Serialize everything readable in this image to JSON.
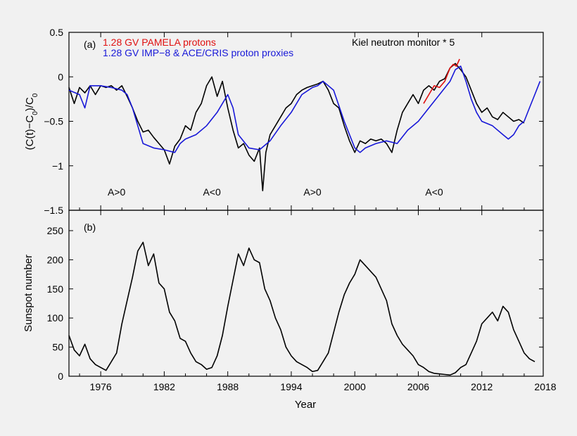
{
  "chart_data": [
    {
      "type": "line",
      "panel_label": "(a)",
      "ylabel": "(C(t)−C0)/C0",
      "ylim": [
        -1.5,
        0.5
      ],
      "yticks": [
        0.5,
        0,
        -0.5,
        -1,
        -1.5
      ],
      "ytick_labels": [
        "0.5",
        "0",
        "−0.5",
        "−1",
        "−1.5"
      ],
      "xlim": [
        1973.0,
        2017.8
      ],
      "series": [
        {
          "name": "Kiel neutron monitor * 5",
          "color": "#000000",
          "x": [
            1973.0,
            1973.5,
            1974.0,
            1974.5,
            1975.0,
            1975.5,
            1976.0,
            1976.5,
            1977.0,
            1977.5,
            1978.0,
            1978.5,
            1979.0,
            1979.5,
            1980.0,
            1980.5,
            1981.0,
            1981.5,
            1982.0,
            1982.5,
            1983.0,
            1983.5,
            1984.0,
            1984.5,
            1985.0,
            1985.5,
            1986.0,
            1986.5,
            1987.0,
            1987.5,
            1988.0,
            1988.5,
            1989.0,
            1989.5,
            1990.0,
            1990.5,
            1991.0,
            1991.3,
            1991.6,
            1992.0,
            1992.5,
            1993.0,
            1993.5,
            1994.0,
            1994.5,
            1995.0,
            1995.5,
            1996.0,
            1996.5,
            1997.0,
            1997.5,
            1998.0,
            1998.5,
            1999.0,
            1999.5,
            2000.0,
            2000.5,
            2001.0,
            2001.5,
            2002.0,
            2002.5,
            2003.0,
            2003.5,
            2004.0,
            2004.5,
            2005.0,
            2005.5,
            2006.0,
            2006.5,
            2007.0,
            2007.5,
            2008.0,
            2008.5,
            2009.0,
            2009.5,
            2010.0,
            2010.5,
            2011.0,
            2011.5,
            2012.0,
            2012.5,
            2013.0,
            2013.5,
            2014.0,
            2014.5,
            2015.0,
            2015.5,
            2016.0
          ],
          "y": [
            -0.12,
            -0.3,
            -0.12,
            -0.18,
            -0.1,
            -0.2,
            -0.1,
            -0.12,
            -0.1,
            -0.15,
            -0.1,
            -0.22,
            -0.35,
            -0.5,
            -0.62,
            -0.6,
            -0.68,
            -0.75,
            -0.82,
            -0.98,
            -0.78,
            -0.7,
            -0.55,
            -0.6,
            -0.4,
            -0.3,
            -0.1,
            0.0,
            -0.22,
            -0.05,
            -0.35,
            -0.6,
            -0.8,
            -0.75,
            -0.88,
            -0.95,
            -0.8,
            -1.28,
            -0.85,
            -0.65,
            -0.55,
            -0.45,
            -0.35,
            -0.3,
            -0.2,
            -0.15,
            -0.12,
            -0.1,
            -0.08,
            -0.05,
            -0.15,
            -0.3,
            -0.35,
            -0.55,
            -0.72,
            -0.85,
            -0.72,
            -0.75,
            -0.7,
            -0.72,
            -0.7,
            -0.75,
            -0.85,
            -0.6,
            -0.4,
            -0.3,
            -0.2,
            -0.3,
            -0.15,
            -0.1,
            -0.15,
            -0.05,
            -0.02,
            0.1,
            0.15,
            0.08,
            0.0,
            -0.15,
            -0.3,
            -0.4,
            -0.35,
            -0.45,
            -0.48,
            -0.4,
            -0.45,
            -0.5,
            -0.48,
            -0.52
          ]
        },
        {
          "name": "1.28 GV IMP−8 & ACE/CRIS proton proxies",
          "color": "#1818d8",
          "x": [
            1973.0,
            1974.0,
            1974.5,
            1975.0,
            1976.0,
            1977.0,
            1978.0,
            1978.5,
            1979.0,
            1979.5,
            1980.0,
            1981.0,
            1982.0,
            1983.0,
            1983.5,
            1984.0,
            1985.0,
            1986.0,
            1987.0,
            1987.5,
            1988.0,
            1988.5,
            1989.0,
            1990.0,
            1991.0,
            1992.0,
            1993.0,
            1994.0,
            1995.0,
            1996.0,
            1996.5,
            1997.0,
            1998.0,
            1999.0,
            2000.0,
            2000.5,
            2001.0,
            2002.0,
            2003.0,
            2004.0,
            2005.0,
            2006.0,
            2007.0,
            2008.0,
            2009.0,
            2009.5,
            2010.0,
            2010.5,
            2011.0,
            2011.5,
            2012.0,
            2013.0,
            2014.0,
            2014.5,
            2015.0,
            2015.5,
            2016.0,
            2016.5,
            2017.0,
            2017.5
          ],
          "y": [
            -0.15,
            -0.2,
            -0.35,
            -0.1,
            -0.1,
            -0.12,
            -0.15,
            -0.2,
            -0.35,
            -0.55,
            -0.75,
            -0.8,
            -0.82,
            -0.85,
            -0.75,
            -0.7,
            -0.65,
            -0.55,
            -0.4,
            -0.3,
            -0.2,
            -0.35,
            -0.65,
            -0.8,
            -0.82,
            -0.72,
            -0.55,
            -0.4,
            -0.2,
            -0.12,
            -0.1,
            -0.05,
            -0.15,
            -0.5,
            -0.8,
            -0.85,
            -0.8,
            -0.75,
            -0.72,
            -0.75,
            -0.6,
            -0.5,
            -0.35,
            -0.2,
            -0.05,
            0.08,
            0.12,
            -0.05,
            -0.25,
            -0.4,
            -0.5,
            -0.55,
            -0.65,
            -0.7,
            -0.65,
            -0.55,
            -0.5,
            -0.35,
            -0.2,
            -0.05
          ]
        },
        {
          "name": "1.28 GV PAMELA protons",
          "color": "#e01010",
          "x": [
            2006.5,
            2007.0,
            2007.5,
            2008.0,
            2008.5,
            2009.0,
            2009.3,
            2009.6,
            2009.9
          ],
          "y": [
            -0.3,
            -0.2,
            -0.1,
            -0.12,
            -0.05,
            0.1,
            0.14,
            0.12,
            0.2
          ]
        }
      ],
      "annotations": [
        "A>0",
        "A<0",
        "A>0",
        "A<0"
      ],
      "annotation_x": [
        1977.5,
        1986.5,
        1996.0,
        2007.5
      ]
    },
    {
      "type": "line",
      "panel_label": "(b)",
      "ylabel": "Sunspot number",
      "xlabel": "Year",
      "ylim": [
        0,
        285
      ],
      "yticks": [
        0,
        50,
        100,
        150,
        200,
        250
      ],
      "ytick_labels": [
        "0",
        "50",
        "100",
        "150",
        "200",
        "250"
      ],
      "xlim": [
        1973.0,
        2017.8
      ],
      "xticks": [
        1976,
        1982,
        1988,
        1994,
        2000,
        2006,
        2012,
        2018
      ],
      "xtick_labels": [
        "1976",
        "1982",
        "1988",
        "1994",
        "2000",
        "2006",
        "2012",
        "2018"
      ],
      "series": [
        {
          "color": "#000000",
          "x": [
            1973.0,
            1973.5,
            1974.0,
            1974.5,
            1975.0,
            1975.5,
            1976.0,
            1976.5,
            1977.0,
            1977.5,
            1978.0,
            1978.5,
            1979.0,
            1979.5,
            1980.0,
            1980.5,
            1981.0,
            1981.5,
            1982.0,
            1982.5,
            1983.0,
            1983.5,
            1984.0,
            1984.5,
            1985.0,
            1985.5,
            1986.0,
            1986.5,
            1987.0,
            1987.5,
            1988.0,
            1988.5,
            1989.0,
            1989.5,
            1990.0,
            1990.5,
            1991.0,
            1991.5,
            1992.0,
            1992.5,
            1993.0,
            1993.5,
            1994.0,
            1994.5,
            1995.0,
            1995.5,
            1996.0,
            1996.5,
            1997.0,
            1997.5,
            1998.0,
            1998.5,
            1999.0,
            1999.5,
            2000.0,
            2000.5,
            2001.0,
            2001.5,
            2002.0,
            2002.5,
            2003.0,
            2003.5,
            2004.0,
            2004.5,
            2005.0,
            2005.5,
            2006.0,
            2006.5,
            2007.0,
            2007.5,
            2008.0,
            2008.5,
            2009.0,
            2009.5,
            2010.0,
            2010.5,
            2011.0,
            2011.5,
            2012.0,
            2012.5,
            2013.0,
            2013.5,
            2014.0,
            2014.5,
            2015.0,
            2015.5,
            2016.0,
            2016.5,
            2017.0
          ],
          "y": [
            70,
            45,
            35,
            55,
            30,
            20,
            15,
            10,
            25,
            40,
            90,
            130,
            170,
            215,
            230,
            190,
            210,
            160,
            150,
            110,
            95,
            65,
            60,
            40,
            25,
            20,
            12,
            15,
            35,
            70,
            120,
            165,
            210,
            190,
            220,
            200,
            195,
            150,
            130,
            100,
            80,
            50,
            35,
            25,
            20,
            15,
            8,
            10,
            25,
            40,
            75,
            110,
            140,
            160,
            175,
            200,
            190,
            180,
            170,
            150,
            130,
            90,
            70,
            55,
            45,
            35,
            20,
            15,
            8,
            5,
            4,
            3,
            2,
            6,
            15,
            20,
            40,
            60,
            90,
            100,
            110,
            95,
            120,
            110,
            80,
            60,
            40,
            30,
            25
          ]
        }
      ]
    }
  ]
}
